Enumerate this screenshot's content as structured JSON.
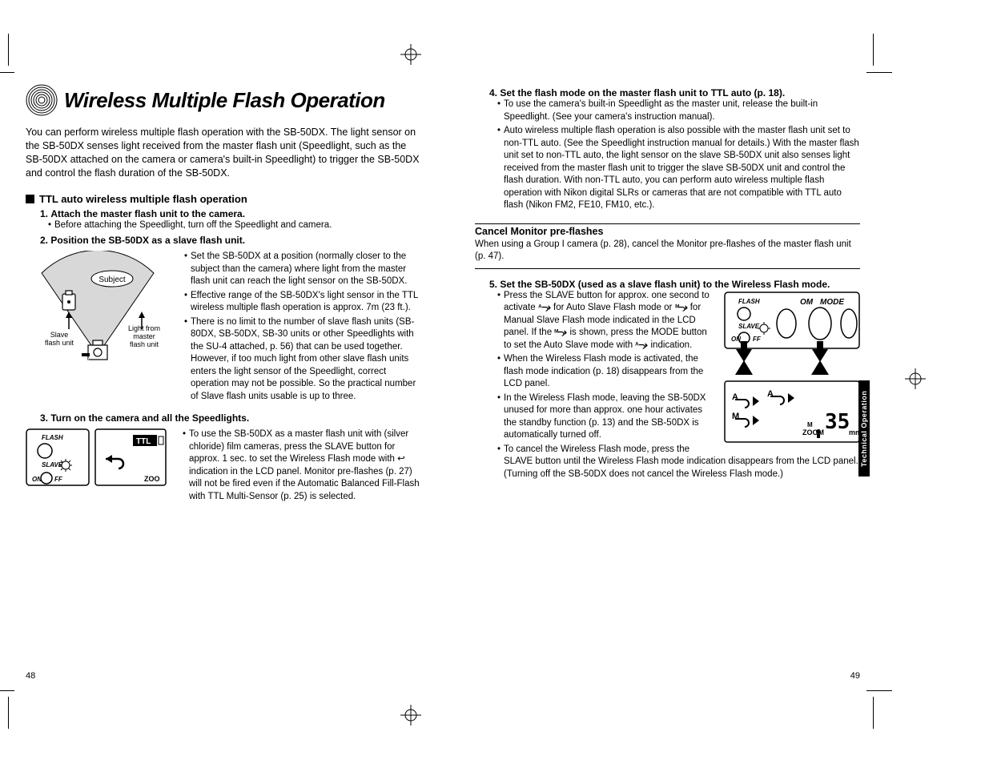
{
  "colors": {
    "text": "#000000",
    "bg": "#ffffff",
    "cone_fill": "#d8d8d8",
    "tab_bg": "#000000",
    "tab_fg": "#ffffff"
  },
  "fonts": {
    "body_family": "Arial, Helvetica, sans-serif",
    "title_pt": 26,
    "body_pt": 12.5,
    "bullet_pt": 11.5,
    "step_title_weight": "bold",
    "title_style": "italic"
  },
  "left": {
    "page_num": "48",
    "title": "Wireless Multiple Flash Operation",
    "intro": "You can perform wireless multiple flash operation with the SB-50DX. The light sensor on the SB-50DX senses light received from the master flash unit (Speedlight, such as the SB-50DX attached on the camera or camera's built-in Speedlight) to trigger the SB-50DX and control the flash duration of the SB-50DX.",
    "section1": {
      "heading": "TTL auto wireless multiple flash operation",
      "steps": [
        {
          "title": "Attach the master flash unit to the camera.",
          "bullets": [
            "Before attaching the Speedlight, turn off the Speedlight and camera."
          ]
        },
        {
          "title": "Position the SB-50DX as a slave flash unit.",
          "bullets": [
            "Set the SB-50DX at a position (normally closer to the subject than the camera) where light from the master flash unit can reach the light sensor on the SB-50DX.",
            "Effective range of the SB-50DX's light sensor in the TTL wireless multiple flash operation is approx. 7m (23 ft.).",
            "There is no limit to the number of slave flash units (SB-80DX, SB-50DX, SB-30 units or other Speedlights with the SU-4 attached, p. 56) that can be used together. However, if too much light from other slave flash units enters the light sensor of the Speedlight, correct operation may not be possible. So the practical number of Slave flash units usable is up to three."
          ],
          "diagram_labels": {
            "subject": "Subject",
            "slave": "Slave flash unit",
            "light": "Light from master flash unit",
            "ttl_badge": "TTL"
          }
        },
        {
          "title": "Turn on the camera and all the Speedlights.",
          "bullets": [
            "To use the SB-50DX as a master flash unit with (silver chloride) film cameras, press the SLAVE button for approx. 1 sec. to set the Wireless Flash mode with ↩ indication in the LCD panel. Monitor pre-flashes (p. 27) will not be fired even if the Automatic Balanced Fill-Flash with TTL Multi-Sensor (p. 25) is selected."
          ],
          "panel_labels": {
            "flash": "FLASH",
            "slave": "SLAVE",
            "on": "ON",
            "off": "FF",
            "ttl": "TTL",
            "zoom": "ZOO"
          }
        }
      ]
    }
  },
  "right": {
    "page_num": "49",
    "tab": "Technical Operation",
    "steps": [
      {
        "title": "Set the flash mode on the master flash unit to TTL auto (p. 18).",
        "bullets": [
          "To use the camera's built-in Speedlight as the master unit, release the built-in Speedlight. (See your camera's instruction manual).",
          "Auto wireless multiple flash operation is also possible with the master flash unit set to non-TTL auto. (See the Speedlight instruction manual for details.) With the master flash unit set to non-TTL auto, the light sensor on the slave SB-50DX unit also senses light received from the master flash unit to trigger the slave SB-50DX unit and control the flash duration. With non-TTL auto, you can perform auto wireless multiple flash operation with Nikon digital SLRs or cameras that are not compatible with TTL auto flash (Nikon FM2, FE10, FM10, etc.)."
        ]
      },
      {
        "title": "Set the SB-50DX (used as a slave flash unit) to the Wireless Flash mode.",
        "bullets_rich": [
          {
            "pre": "Press the SLAVE button for approx. one second to activate ",
            "icon1": "auto-slave-icon",
            "mid1": " for Auto Slave Flash mode or ",
            "icon2": "manual-slave-icon",
            "mid2": " for Manual Slave Flash mode indicated in the LCD panel. If the ",
            "icon3": "manual-slave-icon",
            "mid3": " is shown, press the MODE button to set the Auto Slave mode with ",
            "icon4": "auto-slave-icon",
            "post": " indication."
          },
          {
            "text": "When the Wireless Flash mode is activated, the flash mode indication (p. 18) disappears from the LCD panel."
          },
          {
            "text": "In the Wireless Flash mode, leaving the SB-50DX unused for more than approx. one hour activates the standby function (p. 13) and the SB-50DX is automatically turned off."
          },
          {
            "text": "To cancel the Wireless Flash mode, press the SLAVE button until the Wireless Flash mode indication disappears from the LCD panel. (Turning off the SB-50DX does not cancel the Wireless Flash mode.)"
          }
        ],
        "panel_labels": {
          "flash": "FLASH",
          "slave": "SLAVE",
          "on": "ON",
          "off": "FF",
          "om": "OM",
          "mode": "MODE",
          "zoom": "ZOOM",
          "A": "A",
          "M": "M",
          "focal": "35",
          "mm": "mm"
        }
      }
    ],
    "callout": {
      "title": "Cancel Monitor pre-flashes",
      "body": "When using a Group I camera (p. 28), cancel the Monitor pre-flashes of the master flash unit (p. 47)."
    }
  }
}
